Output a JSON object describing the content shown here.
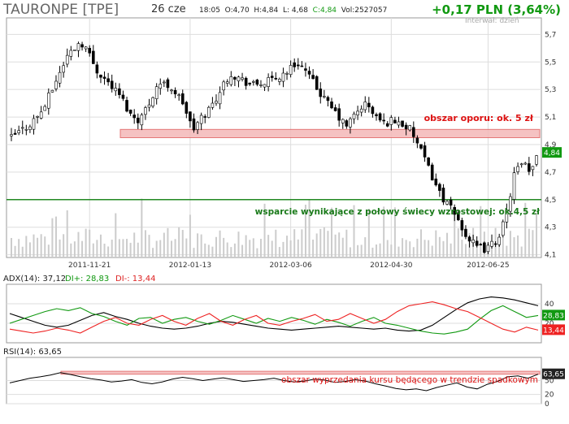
{
  "header": {
    "ticker": "TAURONPE [TPE]",
    "date": "26 cze",
    "time": "18:05",
    "open": "O:4,70",
    "high": "H:4,84",
    "low": "L: 4,68",
    "close": "C:4,84",
    "volume": "Vol:2527057",
    "change": "+0,17 PLN (3,64%)",
    "interval": "Interwał: dzień"
  },
  "colors": {
    "up": "#119911",
    "down": "#cc0000",
    "zone_fill": "#f4b8b8",
    "zone_stroke": "#e06060",
    "support": "#228822",
    "adx": "#000000",
    "di_plus": "#119911",
    "di_minus": "#ee2222",
    "volume": "#cccccc",
    "grid": "#dddddd"
  },
  "chart_data": [
    {
      "type": "candlestick",
      "ylim": [
        4.08,
        5.82
      ],
      "yticks": [
        "5,7",
        "5,5",
        "5,3",
        "5,1",
        "4,9",
        "4,7",
        "4,5",
        "4,3",
        "4,1"
      ],
      "x_tick_labels": [
        "2011-11-21",
        "2012-01-13",
        "2012-03-06",
        "2012-04-30",
        "2012-06-25"
      ],
      "last_value_label": "4,84",
      "series_ohlc_count": 142,
      "close_path": [
        [
          0,
          4.95
        ],
        [
          6,
          5.05
        ],
        [
          10,
          5.15
        ],
        [
          14,
          5.35
        ],
        [
          18,
          5.55
        ],
        [
          22,
          5.65
        ],
        [
          24,
          5.6
        ],
        [
          27,
          5.45
        ],
        [
          31,
          5.35
        ],
        [
          35,
          5.25
        ],
        [
          38,
          5.12
        ],
        [
          41,
          5.08
        ],
        [
          44,
          5.2
        ],
        [
          47,
          5.35
        ],
        [
          51,
          5.32
        ],
        [
          55,
          5.2
        ],
        [
          58,
          5.0
        ],
        [
          61,
          5.1
        ],
        [
          64,
          5.18
        ],
        [
          67,
          5.3
        ],
        [
          70,
          5.42
        ],
        [
          73,
          5.38
        ],
        [
          77,
          5.33
        ],
        [
          81,
          5.35
        ],
        [
          85,
          5.38
        ],
        [
          89,
          5.45
        ],
        [
          92,
          5.5
        ],
        [
          95,
          5.4
        ],
        [
          98,
          5.3
        ],
        [
          101,
          5.2
        ],
        [
          104,
          5.12
        ],
        [
          107,
          5.03
        ],
        [
          110,
          5.12
        ],
        [
          113,
          5.2
        ],
        [
          116,
          5.12
        ],
        [
          119,
          5.05
        ],
        [
          122,
          5.08
        ],
        [
          125,
          5.05
        ],
        [
          128,
          5.0
        ],
        [
          131,
          4.85
        ],
        [
          134,
          4.7
        ],
        [
          137,
          4.55
        ],
        [
          140,
          4.45
        ],
        [
          143,
          4.35
        ],
        [
          146,
          4.22
        ],
        [
          149,
          4.15
        ],
        [
          152,
          4.14
        ],
        [
          155,
          4.2
        ],
        [
          158,
          4.35
        ],
        [
          161,
          4.7
        ],
        [
          164,
          4.76
        ],
        [
          166,
          4.67
        ],
        [
          168,
          4.84
        ]
      ],
      "annotations": {
        "resistance_label": "obszar oporu: ok. 5 zł",
        "resistance_range": [
          4.95,
          5.01
        ],
        "support_label": "wsparcie wynikające z połowy świecy wzrostowej: ok.4,5 zł",
        "support_level": 4.5
      }
    },
    {
      "type": "line",
      "title": "ADX(14): 37,12",
      "legend": [
        "DI+: 28,83",
        "DI-: 13,44"
      ],
      "last_labels": {
        "di_plus": "28,83",
        "di_minus": "13,44"
      },
      "ylim": [
        0,
        60
      ],
      "yticks": [
        "40",
        "20"
      ],
      "series": [
        {
          "name": "ADX",
          "values": [
            30,
            26,
            22,
            18,
            16,
            18,
            23,
            28,
            31,
            27,
            24,
            20,
            17,
            15,
            14,
            15,
            17,
            20,
            22,
            21,
            19,
            17,
            15,
            14,
            13,
            14,
            15,
            16,
            17,
            16,
            15,
            14,
            15,
            13,
            12,
            13,
            18,
            26,
            34,
            41,
            45,
            47,
            46,
            44,
            41,
            38
          ]
        },
        {
          "name": "DI+",
          "values": [
            20,
            24,
            28,
            32,
            35,
            33,
            36,
            30,
            27,
            22,
            18,
            25,
            26,
            20,
            24,
            26,
            22,
            19,
            23,
            28,
            24,
            20,
            25,
            22,
            26,
            23,
            19,
            24,
            21,
            17,
            22,
            26,
            20,
            18,
            15,
            12,
            10,
            9,
            11,
            14,
            24,
            33,
            38,
            32,
            26,
            28
          ]
        },
        {
          "name": "DI-",
          "values": [
            14,
            12,
            10,
            12,
            15,
            13,
            10,
            16,
            22,
            26,
            20,
            18,
            24,
            28,
            22,
            18,
            25,
            30,
            22,
            18,
            24,
            28,
            20,
            18,
            22,
            25,
            29,
            22,
            24,
            30,
            25,
            20,
            24,
            32,
            38,
            40,
            42,
            39,
            35,
            32,
            26,
            20,
            14,
            11,
            16,
            13
          ]
        }
      ]
    },
    {
      "type": "line",
      "title": "RSI(14): 63,65",
      "last_value_label": "63,65",
      "ylim": [
        0,
        100
      ],
      "yticks": [
        "50",
        "20",
        "0"
      ],
      "overbought_zone": [
        63.65,
        70
      ],
      "annotation_label": "obszar wyprzedania kursu będącego w trendzie spadkowym",
      "series": [
        {
          "name": "RSI",
          "values": [
            45,
            50,
            55,
            58,
            62,
            67,
            63,
            58,
            54,
            51,
            47,
            49,
            52,
            46,
            43,
            47,
            53,
            57,
            54,
            50,
            53,
            56,
            52,
            48,
            50,
            52,
            55,
            50,
            47,
            49,
            53,
            51,
            46,
            48,
            52,
            49,
            43,
            38,
            33,
            30,
            32,
            28,
            35,
            40,
            45,
            36,
            32,
            42,
            48,
            58,
            60,
            55,
            63.65
          ]
        }
      ]
    }
  ]
}
